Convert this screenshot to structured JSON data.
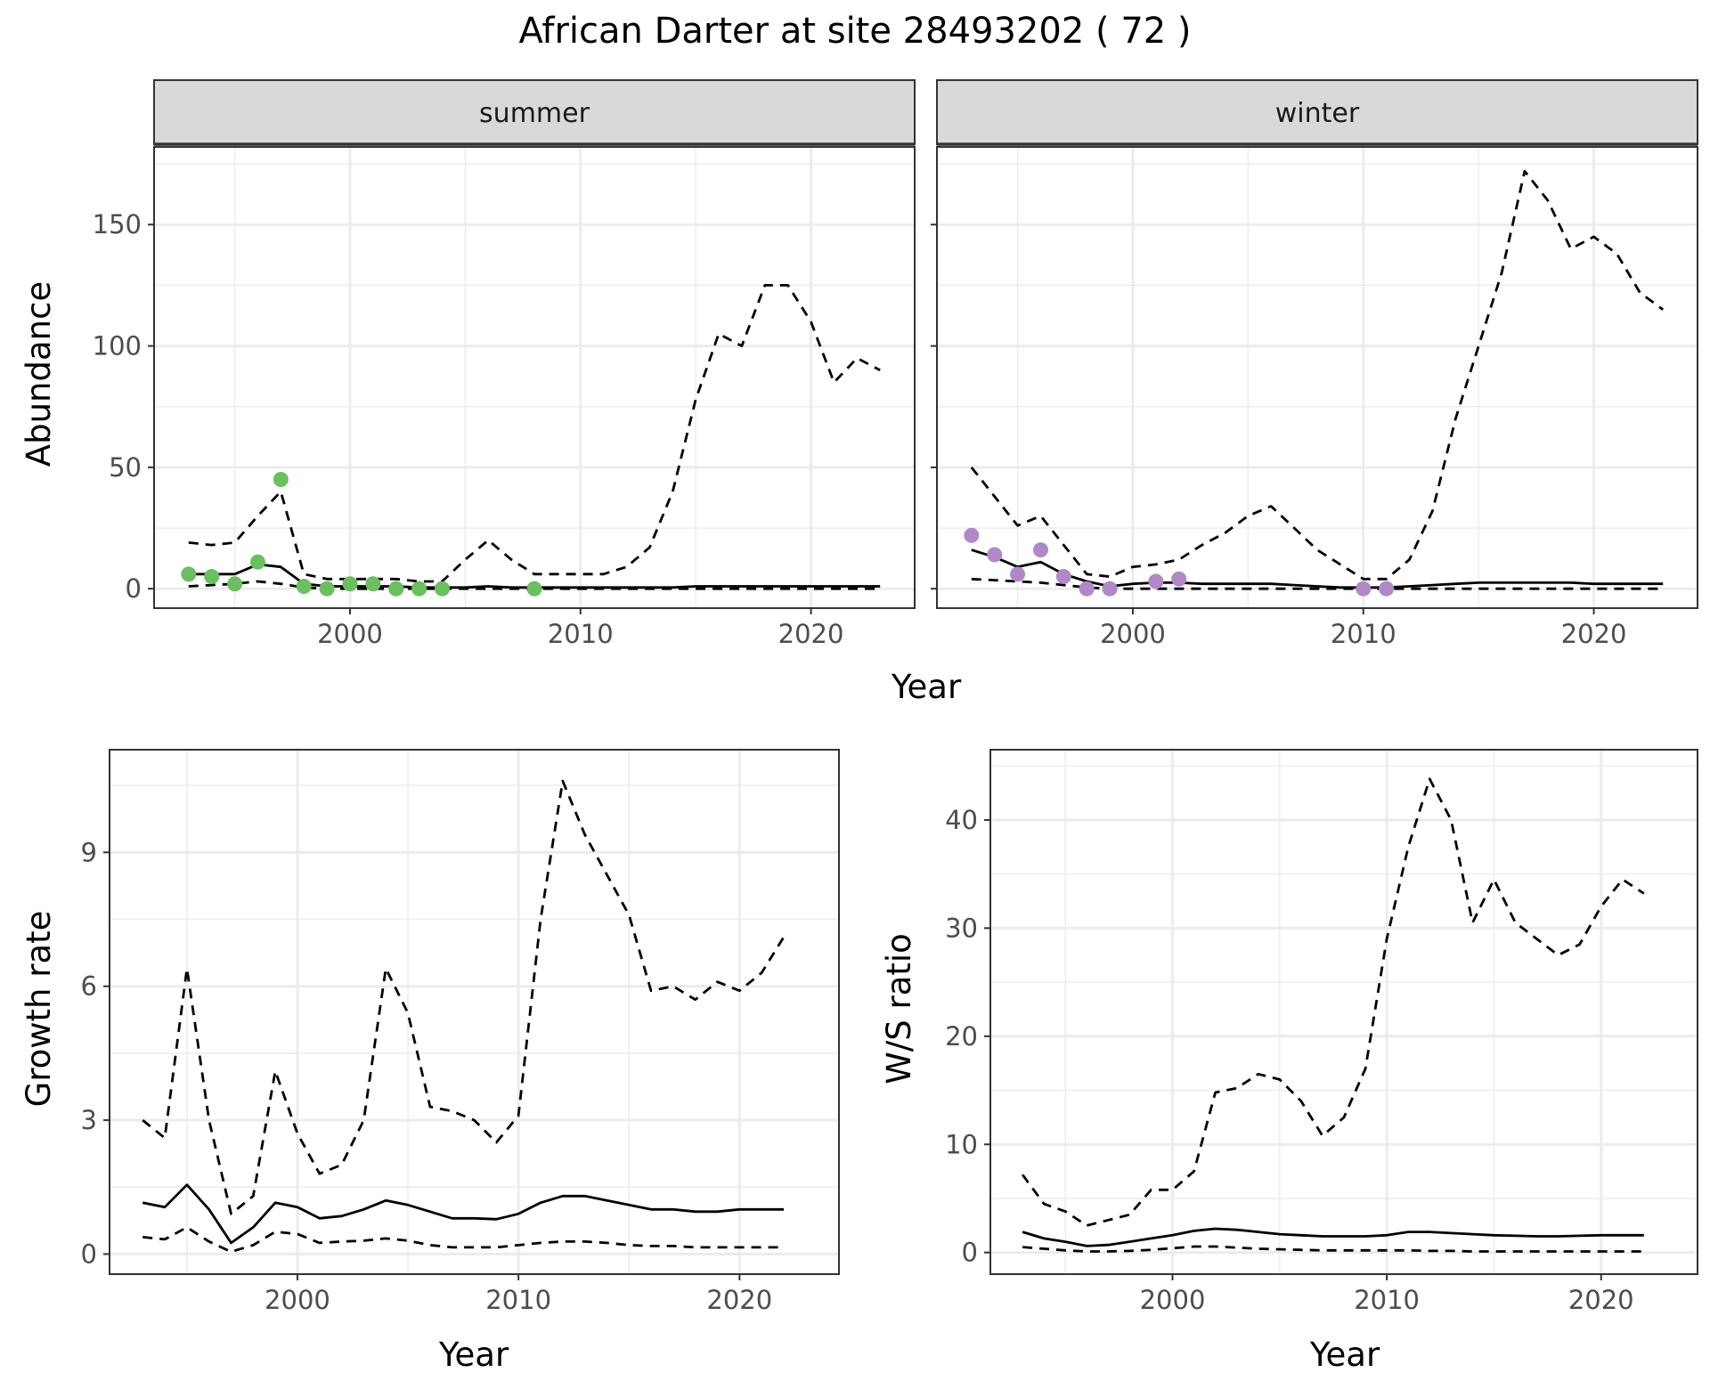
{
  "title": "African Darter at site 28493202 ( 72 )",
  "colors": {
    "summer_points": "#6ABF5E",
    "winter_points": "#B088C6",
    "line": "#000000",
    "strip_fill": "#D9D9D9",
    "grid": "#EBEBEB"
  },
  "chart_data": [
    {
      "type": "line",
      "facet_panel": true,
      "facet": "summer",
      "xlabel": "Year",
      "ylabel": "Abundance",
      "xlim": [
        1991.5,
        2024.5
      ],
      "ylim": [
        -8,
        182
      ],
      "xticks": [
        2000,
        2010,
        2020
      ],
      "yticks": [
        0,
        50,
        100,
        150
      ],
      "grid": true,
      "series": [
        {
          "role": "median",
          "style": "solid",
          "x": [
            1993,
            1994,
            1995,
            1996,
            1997,
            1998,
            1999,
            2000,
            2001,
            2002,
            2003,
            2004,
            2005,
            2006,
            2007,
            2008,
            2009,
            2010,
            2011,
            2012,
            2013,
            2014,
            2015,
            2016,
            2017,
            2018,
            2019,
            2020,
            2021,
            2022,
            2023
          ],
          "values": [
            6,
            6,
            6,
            10,
            9,
            2,
            1,
            1,
            1,
            1,
            0.5,
            0.5,
            0.5,
            1,
            0.5,
            0.5,
            0.5,
            0.5,
            0.5,
            0.5,
            0.5,
            0.5,
            1,
            1,
            1,
            1,
            1,
            1,
            1,
            1,
            1
          ]
        },
        {
          "role": "upper",
          "style": "dashed",
          "x": [
            1993,
            1994,
            1995,
            1996,
            1997,
            1998,
            1999,
            2000,
            2001,
            2002,
            2003,
            2004,
            2005,
            2006,
            2007,
            2008,
            2009,
            2010,
            2011,
            2012,
            2013,
            2014,
            2015,
            2016,
            2017,
            2018,
            2019,
            2020,
            2021,
            2022,
            2023
          ],
          "values": [
            19,
            18,
            19,
            30,
            40,
            6,
            4,
            4,
            4,
            4,
            3,
            3,
            12,
            20,
            12,
            6,
            6,
            6,
            6,
            9,
            17,
            40,
            78,
            105,
            100,
            125,
            125,
            110,
            85,
            95,
            90
          ]
        },
        {
          "role": "lower",
          "style": "dashed",
          "x": [
            1993,
            1994,
            1995,
            1996,
            1997,
            1998,
            1999,
            2000,
            2001,
            2002,
            2003,
            2004,
            2005,
            2006,
            2007,
            2008,
            2009,
            2010,
            2011,
            2012,
            2013,
            2014,
            2015,
            2016,
            2017,
            2018,
            2019,
            2020,
            2021,
            2022,
            2023
          ],
          "values": [
            1,
            1.5,
            2,
            3,
            2,
            0.5,
            0,
            0,
            0,
            0,
            0,
            0,
            0,
            0,
            0,
            0,
            0,
            0,
            0,
            0,
            0,
            0,
            0,
            0,
            0,
            0,
            0,
            0,
            0,
            0,
            0
          ]
        }
      ],
      "points": {
        "x": [
          1993,
          1994,
          1995,
          1996,
          1997,
          1998,
          1999,
          2000,
          2001,
          2002,
          2003,
          2004,
          2008
        ],
        "y": [
          6,
          5,
          2,
          11,
          45,
          1,
          0,
          2,
          2,
          0,
          0,
          0,
          0
        ]
      }
    },
    {
      "type": "line",
      "facet_panel": true,
      "facet": "winter",
      "xlabel": "Year",
      "ylabel": "Abundance",
      "xlim": [
        1991.5,
        2024.5
      ],
      "ylim": [
        -8,
        182
      ],
      "xticks": [
        2000,
        2010,
        2020
      ],
      "yticks": [
        0,
        50,
        100,
        150
      ],
      "grid": true,
      "series": [
        {
          "role": "median",
          "style": "solid",
          "x": [
            1993,
            1994,
            1995,
            1996,
            1997,
            1998,
            1999,
            2000,
            2001,
            2002,
            2003,
            2004,
            2005,
            2006,
            2007,
            2008,
            2009,
            2010,
            2011,
            2012,
            2013,
            2014,
            2015,
            2016,
            2017,
            2018,
            2019,
            2020,
            2021,
            2022,
            2023
          ],
          "values": [
            16,
            13,
            9,
            11,
            6,
            3,
            1,
            2,
            2.5,
            2.5,
            2,
            2,
            2,
            2,
            1.5,
            1,
            0.5,
            0.5,
            0.5,
            1,
            1.5,
            2,
            2.5,
            2.5,
            2.5,
            2.5,
            2.5,
            2,
            2,
            2,
            2
          ]
        },
        {
          "role": "upper",
          "style": "dashed",
          "x": [
            1993,
            1994,
            1995,
            1996,
            1997,
            1998,
            1999,
            2000,
            2001,
            2002,
            2003,
            2004,
            2005,
            2006,
            2007,
            2008,
            2009,
            2010,
            2011,
            2012,
            2013,
            2014,
            2015,
            2016,
            2017,
            2018,
            2019,
            2020,
            2021,
            2022,
            2023
          ],
          "values": [
            50,
            38,
            26,
            30,
            18,
            6,
            5,
            9,
            10,
            12,
            18,
            23,
            30,
            34,
            25,
            16,
            10,
            4,
            4,
            12,
            32,
            70,
            100,
            130,
            172,
            160,
            140,
            145,
            138,
            122,
            115
          ]
        },
        {
          "role": "lower",
          "style": "dashed",
          "x": [
            1993,
            1994,
            1995,
            1996,
            1997,
            1998,
            1999,
            2000,
            2001,
            2002,
            2003,
            2004,
            2005,
            2006,
            2007,
            2008,
            2009,
            2010,
            2011,
            2012,
            2013,
            2014,
            2015,
            2016,
            2017,
            2018,
            2019,
            2020,
            2021,
            2022,
            2023
          ],
          "values": [
            4,
            3.5,
            3,
            2.5,
            1.5,
            0.5,
            0,
            0,
            0,
            0,
            0,
            0,
            0,
            0,
            0,
            0,
            0,
            0,
            0,
            0,
            0,
            0,
            0,
            0,
            0,
            0,
            0,
            0,
            0,
            0,
            0
          ]
        }
      ],
      "points": {
        "x": [
          1993,
          1994,
          1995,
          1996,
          1997,
          1998,
          1999,
          2001,
          2002,
          2010,
          2011
        ],
        "y": [
          22,
          14,
          6,
          16,
          5,
          0,
          0,
          3,
          4,
          0,
          0
        ]
      }
    },
    {
      "type": "line",
      "facet_panel": false,
      "xlabel": "Year",
      "ylabel": "Growth rate",
      "xlim": [
        1991.5,
        2024.5
      ],
      "ylim": [
        -0.45,
        11.3
      ],
      "xticks": [
        2000,
        2010,
        2020
      ],
      "yticks": [
        0,
        3,
        6,
        9
      ],
      "grid": true,
      "series": [
        {
          "role": "median",
          "style": "solid",
          "x": [
            1993,
            1994,
            1995,
            1996,
            1997,
            1998,
            1999,
            2000,
            2001,
            2002,
            2003,
            2004,
            2005,
            2006,
            2007,
            2008,
            2009,
            2010,
            2011,
            2012,
            2013,
            2014,
            2015,
            2016,
            2017,
            2018,
            2019,
            2020,
            2021,
            2022
          ],
          "values": [
            1.15,
            1.05,
            1.55,
            1.0,
            0.25,
            0.6,
            1.15,
            1.05,
            0.8,
            0.85,
            1.0,
            1.2,
            1.1,
            0.95,
            0.8,
            0.8,
            0.78,
            0.9,
            1.15,
            1.3,
            1.3,
            1.2,
            1.1,
            1.0,
            1.0,
            0.95,
            0.95,
            1.0,
            1.0,
            1.0
          ]
        },
        {
          "role": "upper",
          "style": "dashed",
          "x": [
            1993,
            1994,
            1995,
            1996,
            1997,
            1998,
            1999,
            2000,
            2001,
            2002,
            2003,
            2004,
            2005,
            2006,
            2007,
            2008,
            2009,
            2010,
            2011,
            2012,
            2013,
            2014,
            2015,
            2016,
            2017,
            2018,
            2019,
            2020,
            2021,
            2022
          ],
          "values": [
            3.0,
            2.6,
            6.4,
            3.0,
            0.9,
            1.3,
            4.1,
            2.7,
            1.8,
            2.0,
            3.0,
            6.4,
            5.4,
            3.3,
            3.2,
            3.0,
            2.5,
            3.1,
            7.5,
            10.6,
            9.4,
            8.5,
            7.6,
            5.9,
            6.0,
            5.7,
            6.1,
            5.9,
            6.3,
            7.1
          ]
        },
        {
          "role": "lower",
          "style": "dashed",
          "x": [
            1993,
            1994,
            1995,
            1996,
            1997,
            1998,
            1999,
            2000,
            2001,
            2002,
            2003,
            2004,
            2005,
            2006,
            2007,
            2008,
            2009,
            2010,
            2011,
            2012,
            2013,
            2014,
            2015,
            2016,
            2017,
            2018,
            2019,
            2020,
            2021,
            2022
          ],
          "values": [
            0.38,
            0.33,
            0.6,
            0.28,
            0.05,
            0.2,
            0.5,
            0.45,
            0.25,
            0.28,
            0.3,
            0.35,
            0.3,
            0.2,
            0.15,
            0.15,
            0.15,
            0.2,
            0.25,
            0.28,
            0.28,
            0.25,
            0.2,
            0.18,
            0.18,
            0.15,
            0.15,
            0.15,
            0.15,
            0.15
          ]
        }
      ]
    },
    {
      "type": "line",
      "facet_panel": false,
      "xlabel": "Year",
      "ylabel": "W/S ratio",
      "xlim": [
        1991.5,
        2024.5
      ],
      "ylim": [
        -2.0,
        46.5
      ],
      "xticks": [
        2000,
        2010,
        2020
      ],
      "yticks": [
        0,
        10,
        20,
        30,
        40
      ],
      "grid": true,
      "series": [
        {
          "role": "median",
          "style": "solid",
          "x": [
            1993,
            1994,
            1995,
            1996,
            1997,
            1998,
            1999,
            2000,
            2001,
            2002,
            2003,
            2004,
            2005,
            2006,
            2007,
            2008,
            2009,
            2010,
            2011,
            2012,
            2013,
            2014,
            2015,
            2016,
            2017,
            2018,
            2019,
            2020,
            2021,
            2022
          ],
          "values": [
            1.9,
            1.3,
            1.0,
            0.6,
            0.7,
            1.0,
            1.3,
            1.6,
            2.0,
            2.2,
            2.1,
            1.9,
            1.7,
            1.6,
            1.5,
            1.5,
            1.5,
            1.6,
            1.9,
            1.9,
            1.8,
            1.7,
            1.6,
            1.55,
            1.5,
            1.5,
            1.55,
            1.6,
            1.6,
            1.6
          ]
        },
        {
          "role": "upper",
          "style": "dashed",
          "x": [
            1993,
            1994,
            1995,
            1996,
            1997,
            1998,
            1999,
            2000,
            2001,
            2002,
            2003,
            2004,
            2005,
            2006,
            2007,
            2008,
            2009,
            2010,
            2011,
            2012,
            2013,
            2014,
            2015,
            2016,
            2017,
            2018,
            2019,
            2020,
            2021,
            2022
          ],
          "values": [
            7.2,
            4.5,
            3.8,
            2.5,
            3.0,
            3.5,
            5.8,
            5.8,
            7.5,
            14.8,
            15.2,
            16.5,
            16.0,
            14.0,
            10.8,
            12.5,
            17.0,
            29.0,
            37.5,
            43.8,
            40.0,
            30.5,
            34.5,
            30.5,
            29.0,
            27.5,
            28.5,
            32.0,
            34.5,
            33.2
          ]
        },
        {
          "role": "lower",
          "style": "dashed",
          "x": [
            1993,
            1994,
            1995,
            1996,
            1997,
            1998,
            1999,
            2000,
            2001,
            2002,
            2003,
            2004,
            2005,
            2006,
            2007,
            2008,
            2009,
            2010,
            2011,
            2012,
            2013,
            2014,
            2015,
            2016,
            2017,
            2018,
            2019,
            2020,
            2021,
            2022
          ],
          "values": [
            0.5,
            0.35,
            0.2,
            0.1,
            0.1,
            0.15,
            0.25,
            0.4,
            0.55,
            0.55,
            0.45,
            0.35,
            0.3,
            0.25,
            0.2,
            0.2,
            0.2,
            0.2,
            0.2,
            0.15,
            0.15,
            0.1,
            0.1,
            0.1,
            0.1,
            0.1,
            0.1,
            0.1,
            0.1,
            0.1
          ]
        }
      ]
    }
  ]
}
